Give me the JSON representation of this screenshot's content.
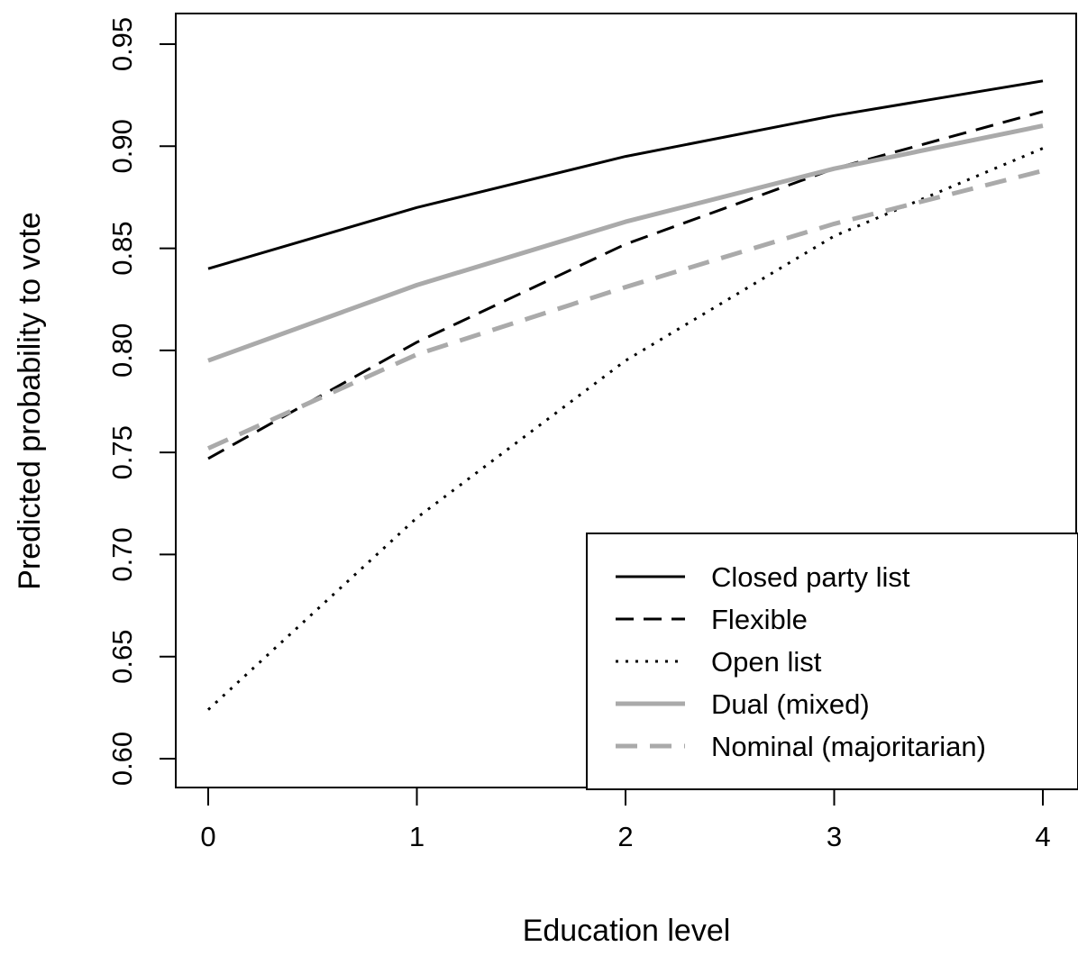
{
  "chart_data": {
    "type": "line",
    "title": "",
    "xlabel": "Education level",
    "ylabel": "Predicted probability to vote",
    "xlim": [
      0,
      4
    ],
    "ylim": [
      0.6,
      0.95
    ],
    "x": [
      0,
      1,
      2,
      3,
      4
    ],
    "x_ticks": [
      "0",
      "1",
      "2",
      "3",
      "4"
    ],
    "y_ticks": [
      "0.60",
      "0.65",
      "0.70",
      "0.75",
      "0.80",
      "0.85",
      "0.90",
      "0.95"
    ],
    "grid": false,
    "legend_position": "bottom-right",
    "series": [
      {
        "name": "Closed party list",
        "values": [
          0.84,
          0.87,
          0.895,
          0.915,
          0.932
        ],
        "color": "#000000",
        "dash": "solid"
      },
      {
        "name": "Flexible",
        "values": [
          0.747,
          0.804,
          0.852,
          0.889,
          0.917
        ],
        "color": "#000000",
        "dash": "dashed"
      },
      {
        "name": "Open list",
        "values": [
          0.624,
          0.718,
          0.795,
          0.856,
          0.899
        ],
        "color": "#000000",
        "dash": "dotted"
      },
      {
        "name": "Dual (mixed)",
        "values": [
          0.795,
          0.832,
          0.863,
          0.889,
          0.91
        ],
        "color": "#aaaaaa",
        "dash": "solid"
      },
      {
        "name": "Nominal (majoritarian)",
        "values": [
          0.752,
          0.798,
          0.831,
          0.862,
          0.888
        ],
        "color": "#aaaaaa",
        "dash": "dashed"
      }
    ]
  }
}
